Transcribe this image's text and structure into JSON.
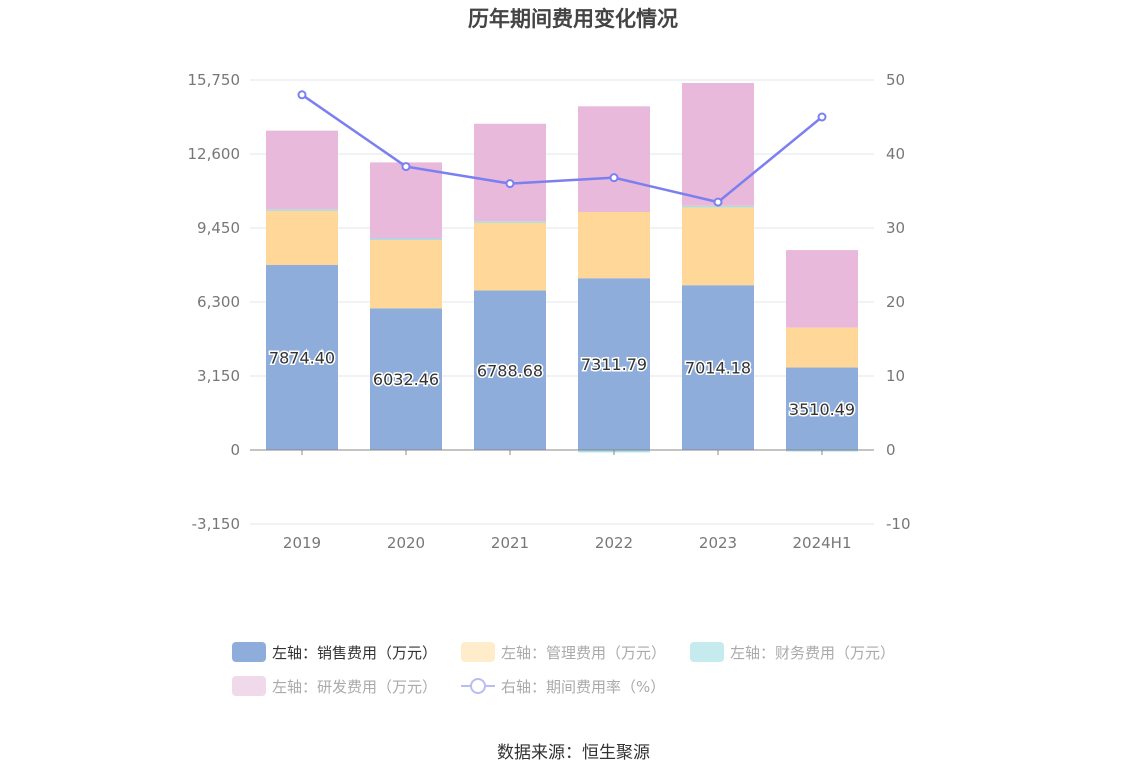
{
  "chart_data": {
    "type": "bar",
    "title": "历年期间费用变化情况",
    "categories": [
      "2019",
      "2020",
      "2021",
      "2022",
      "2023",
      "2024H1"
    ],
    "left_axis": {
      "ticks": [
        "-3,150",
        "0",
        "3,150",
        "6,300",
        "9,450",
        "12,600",
        "15,750"
      ],
      "ylim": [
        -3150,
        15750
      ]
    },
    "right_axis": {
      "ticks": [
        "-10",
        "0",
        "10",
        "20",
        "30",
        "40",
        "50"
      ],
      "ylim": [
        -10,
        50
      ]
    },
    "series": [
      {
        "name": "左轴：销售费用（万元）",
        "type": "bar",
        "stack": "left",
        "color": "#8eaddb",
        "values": [
          7874.4,
          6032.46,
          6788.68,
          7311.79,
          7014.18,
          3510.49
        ],
        "labels": [
          "7874.40",
          "6032.46",
          "6788.68",
          "7311.79",
          "7014.18",
          "3510.49"
        ]
      },
      {
        "name": "左轴：管理费用（万元）",
        "type": "bar",
        "stack": "left",
        "color": "#ffd899",
        "values": [
          2350,
          2960,
          2940,
          2820,
          3350,
          1700
        ]
      },
      {
        "name": "左轴：财务费用（万元）",
        "type": "bar",
        "stack": "left",
        "color": "#a5dfe8",
        "values": [
          20,
          10,
          10,
          -100,
          30,
          -60
        ]
      },
      {
        "name": "左轴：研发费用（万元）",
        "type": "bar",
        "stack": "left",
        "color": "#e8b9da",
        "values": [
          3350,
          3240,
          4150,
          4500,
          5230,
          3300
        ]
      },
      {
        "name": "右轴：期间费用率（%）",
        "type": "line",
        "axis": "right",
        "color": "#7b7ff0",
        "values": [
          48.0,
          38.3,
          36.0,
          36.8,
          33.5,
          45.0
        ]
      }
    ],
    "legend_position": "bottom",
    "grid": true
  },
  "legend": {
    "items": [
      {
        "label": "左轴：销售费用（万元）",
        "color": "#8eaddb",
        "kind": "bar",
        "active": true
      },
      {
        "label": "左轴：管理费用（万元）",
        "color": "#ffeccb",
        "kind": "bar",
        "active": false
      },
      {
        "label": "左轴：财务费用（万元）",
        "color": "#c5ebef",
        "kind": "bar",
        "active": false
      },
      {
        "label": "左轴：研发费用（万元）",
        "color": "#f1d9ec",
        "kind": "bar",
        "active": false
      },
      {
        "label": "右轴：期间费用率（%）",
        "color": "#7b7ff0",
        "kind": "line",
        "active": false
      }
    ]
  },
  "source": "数据来源：恒生聚源"
}
